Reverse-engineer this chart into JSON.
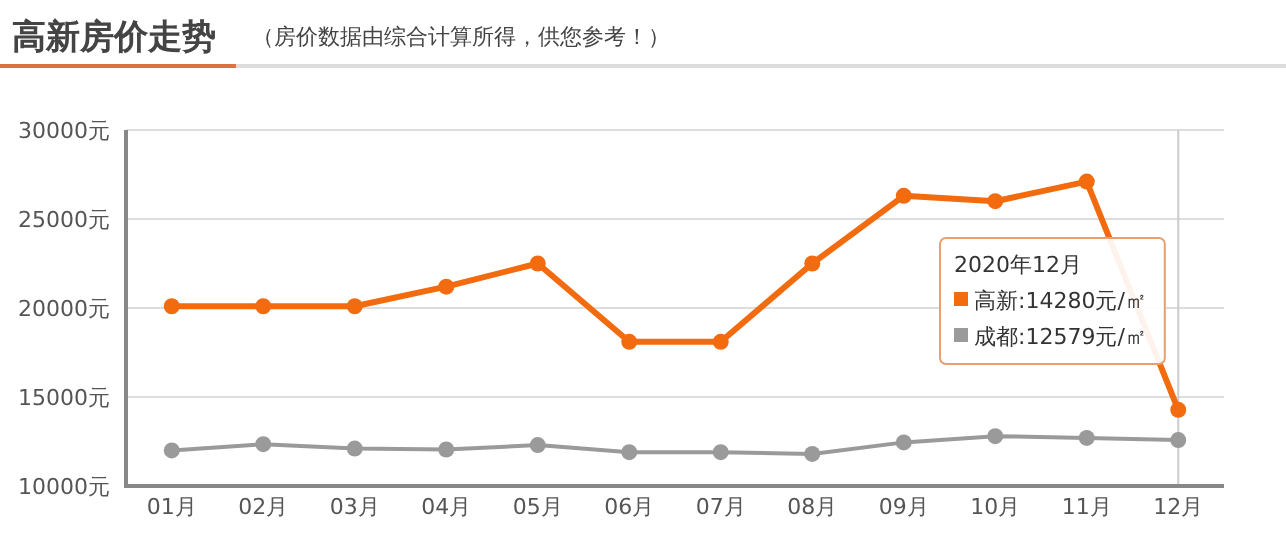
{
  "chart_data": {
    "type": "line",
    "title": "高新房价走势",
    "subtitle": "（房价数据由综合计算所得，供您参考！）",
    "categories": [
      "01月",
      "02月",
      "03月",
      "04月",
      "05月",
      "06月",
      "07月",
      "08月",
      "09月",
      "10月",
      "11月",
      "12月"
    ],
    "series": [
      {
        "name": "高新",
        "color": "#f26b0f",
        "values": [
          20100,
          20100,
          20100,
          21200,
          22500,
          18100,
          18100,
          22500,
          26300,
          26000,
          27100,
          14280
        ]
      },
      {
        "name": "成都",
        "color": "#9a9a9a",
        "values": [
          12000,
          12350,
          12100,
          12050,
          12300,
          11900,
          11900,
          11800,
          12450,
          12800,
          12700,
          12579
        ]
      }
    ],
    "annotations": [
      "2020年12月",
      ":14280元/㎡",
      ":12579元/㎡"
    ],
    "ref_lines": [
      {
        "axis": "x",
        "value": "12月",
        "color": "#cccccc"
      }
    ],
    "ylim": [
      10000,
      30000
    ],
    "yticks": [
      {
        "value": 10000,
        "label": "10000元"
      },
      {
        "value": 15000,
        "label": "15000元"
      },
      {
        "value": 20000,
        "label": "20000元"
      },
      {
        "value": 25000,
        "label": "25000元"
      },
      {
        "value": 30000,
        "label": "30000元"
      }
    ],
    "grid": "y",
    "legend": "right",
    "marker": "circle",
    "line_style": "solid"
  }
}
